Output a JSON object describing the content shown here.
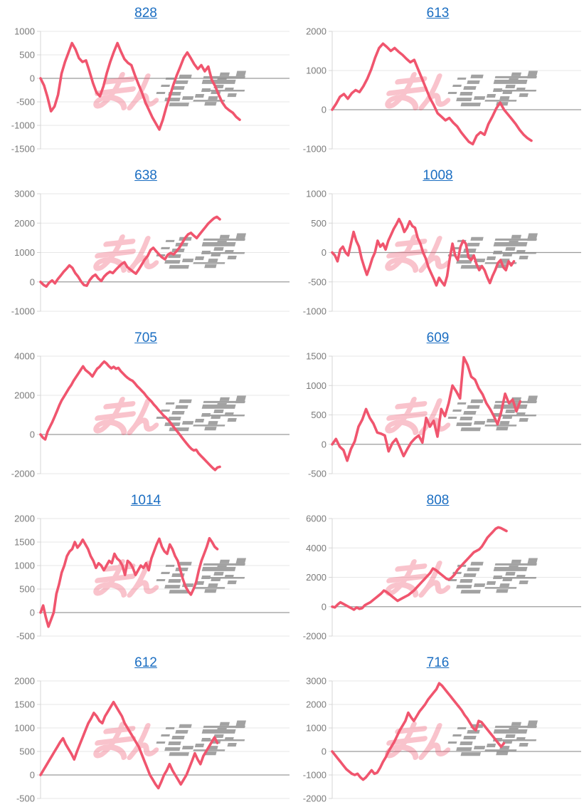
{
  "page": {
    "background": "#ffffff",
    "layout": "2x5 grid of daily slump line charts, each titled with a machine number link"
  },
  "theme": {
    "line_color": "#f0556e",
    "grid_color": "#e7e7e7",
    "zero_line_color": "#9b9b9b",
    "axis_line_color": "#d4d4d4",
    "tick_label_color": "#7a7a7a",
    "title_link_color": "#1b6ec2"
  },
  "watermark": {
    "pink_text": "みん",
    "gray_text": "レポ",
    "pink_color": "#f0556e",
    "gray_color": "#8c8c8c",
    "pink_opacity": 0.35,
    "gray_opacity": 0.8
  },
  "chart_data": [
    {
      "type": "line",
      "title": "828",
      "xlabel": "",
      "ylabel": "",
      "ylim": [
        -1500,
        1000
      ],
      "yticks": [
        1000,
        500,
        0,
        -500,
        -1000,
        -1500
      ],
      "grid": true,
      "x_fill": 0.8,
      "values": [
        0,
        -150,
        -400,
        -700,
        -600,
        -350,
        100,
        350,
        550,
        750,
        620,
        430,
        350,
        380,
        150,
        -100,
        -300,
        -380,
        -170,
        120,
        360,
        570,
        750,
        570,
        410,
        330,
        280,
        70,
        -120,
        -300,
        -510,
        -670,
        -830,
        -960,
        -1090,
        -880,
        -610,
        -380,
        -140,
        70,
        250,
        440,
        550,
        430,
        300,
        200,
        280,
        150,
        250,
        -30,
        -170,
        -350,
        -510,
        -620,
        -680,
        -730,
        -820,
        -880
      ]
    },
    {
      "type": "line",
      "title": "613",
      "xlabel": "",
      "ylabel": "",
      "ylim": [
        -1000,
        2000
      ],
      "yticks": [
        2000,
        1000,
        0,
        -1000
      ],
      "grid": true,
      "x_fill": 0.8,
      "values": [
        0,
        150,
        330,
        400,
        280,
        420,
        500,
        450,
        600,
        790,
        1030,
        1330,
        1575,
        1685,
        1600,
        1500,
        1575,
        1480,
        1400,
        1300,
        1210,
        1270,
        1030,
        790,
        545,
        300,
        120,
        -90,
        -180,
        -270,
        -210,
        -330,
        -425,
        -575,
        -700,
        -820,
        -880,
        -665,
        -575,
        -640,
        -365,
        -180,
        30,
        180,
        0,
        -120,
        -240,
        -365,
        -515,
        -635,
        -725,
        -790
      ]
    },
    {
      "type": "line",
      "title": "638",
      "xlabel": "",
      "ylabel": "",
      "ylim": [
        -1000,
        3000
      ],
      "yticks": [
        3000,
        2000,
        1000,
        0,
        -1000
      ],
      "grid": true,
      "x_fill": 0.72,
      "values": [
        0,
        -100,
        -160,
        -25,
        50,
        -50,
        100,
        220,
        345,
        450,
        560,
        480,
        300,
        180,
        15,
        -105,
        -130,
        60,
        180,
        245,
        115,
        30,
        180,
        280,
        345,
        300,
        410,
        510,
        605,
        670,
        510,
        425,
        345,
        280,
        425,
        590,
        755,
        875,
        1080,
        1160,
        1040,
        935,
        835,
        770,
        920,
        985,
        935,
        1040,
        1160,
        1325,
        1490,
        1615,
        1670,
        1575,
        1490,
        1615,
        1740,
        1860,
        1985,
        2080,
        2165,
        2215,
        2130
      ]
    },
    {
      "type": "line",
      "title": "1008",
      "xlabel": "",
      "ylabel": "",
      "ylim": [
        -1000,
        1000
      ],
      "yticks": [
        1000,
        500,
        0,
        -500,
        -1000
      ],
      "grid": true,
      "x_fill": 0.73,
      "values": [
        0,
        -50,
        -150,
        50,
        100,
        0,
        -50,
        150,
        350,
        200,
        100,
        -100,
        -250,
        -380,
        -250,
        -100,
        0,
        200,
        100,
        150,
        50,
        200,
        300,
        400,
        480,
        570,
        480,
        350,
        420,
        530,
        450,
        420,
        250,
        150,
        0,
        -100,
        -250,
        -350,
        -450,
        -560,
        -430,
        -500,
        -560,
        -400,
        -100,
        150,
        -50,
        -130,
        100,
        200,
        150,
        -80,
        -130,
        -50,
        -200,
        -300,
        -230,
        -300,
        -420,
        -520,
        -400,
        -300,
        -180,
        -130,
        -250,
        -300,
        -150,
        -220,
        -150
      ]
    },
    {
      "type": "line",
      "title": "705",
      "xlabel": "",
      "ylabel": "",
      "ylim": [
        -2000,
        4000
      ],
      "yticks": [
        4000,
        2000,
        0,
        -2000
      ],
      "grid": true,
      "x_fill": 0.72,
      "values": [
        0,
        -160,
        -250,
        150,
        400,
        640,
        915,
        1200,
        1500,
        1750,
        1950,
        2150,
        2350,
        2520,
        2740,
        2925,
        3110,
        3295,
        3480,
        3300,
        3200,
        3100,
        2960,
        3170,
        3355,
        3455,
        3600,
        3725,
        3625,
        3480,
        3380,
        3455,
        3355,
        3400,
        3235,
        3110,
        2985,
        2885,
        2800,
        2740,
        2615,
        2465,
        2345,
        2220,
        2095,
        1935,
        1810,
        1690,
        1530,
        1405,
        1255,
        1130,
        985,
        885,
        765,
        615,
        455,
        295,
        150,
        0,
        -160,
        -320,
        -470,
        -615,
        -740,
        -815,
        -780,
        -965,
        -1090,
        -1210,
        -1335,
        -1460,
        -1585,
        -1710,
        -1810,
        -1685,
        -1650
      ]
    },
    {
      "type": "line",
      "title": "609",
      "xlabel": "",
      "ylabel": "",
      "ylim": [
        -500,
        1500
      ],
      "yticks": [
        1500,
        1000,
        500,
        0,
        -500
      ],
      "grid": true,
      "x_fill": 0.755,
      "values": [
        0,
        90,
        -40,
        -100,
        -280,
        -80,
        50,
        300,
        420,
        600,
        450,
        350,
        200,
        180,
        150,
        -120,
        20,
        90,
        -50,
        -200,
        -80,
        30,
        100,
        150,
        30,
        450,
        300,
        400,
        130,
        600,
        480,
        700,
        1000,
        900,
        780,
        1480,
        1350,
        1150,
        1100,
        950,
        850,
        700,
        600,
        480,
        340,
        560,
        860,
        700,
        760,
        560,
        730
      ]
    },
    {
      "type": "line",
      "title": "1014",
      "xlabel": "",
      "ylabel": "",
      "ylim": [
        -500,
        2000
      ],
      "yticks": [
        2000,
        1500,
        1000,
        500,
        0,
        -500
      ],
      "grid": true,
      "x_fill": 0.71,
      "values": [
        0,
        150,
        -100,
        -300,
        -150,
        0,
        400,
        600,
        850,
        1000,
        1200,
        1300,
        1350,
        1500,
        1380,
        1450,
        1550,
        1450,
        1350,
        1200,
        1100,
        950,
        1050,
        1000,
        900,
        1000,
        1100,
        1050,
        1250,
        1150,
        1100,
        1000,
        800,
        1100,
        1050,
        950,
        800,
        900,
        1000,
        950,
        1050,
        900,
        1150,
        1300,
        1450,
        1570,
        1400,
        1300,
        1250,
        1450,
        1350,
        1200,
        1100,
        900,
        700,
        550,
        450,
        380,
        500,
        650,
        900,
        1100,
        1250,
        1400,
        1580,
        1500,
        1400,
        1350
      ]
    },
    {
      "type": "line",
      "title": "808",
      "xlabel": "",
      "ylabel": "",
      "ylim": [
        -2000,
        6000
      ],
      "yticks": [
        6000,
        4000,
        2000,
        0,
        -2000
      ],
      "grid": true,
      "x_fill": 0.7,
      "values": [
        0,
        -50,
        150,
        300,
        200,
        100,
        0,
        -100,
        -200,
        -50,
        -150,
        -100,
        100,
        200,
        300,
        450,
        600,
        750,
        900,
        1100,
        1000,
        850,
        700,
        550,
        400,
        500,
        600,
        700,
        800,
        950,
        1100,
        1300,
        1500,
        1700,
        1900,
        2100,
        2300,
        2600,
        2500,
        2350,
        2200,
        2050,
        1900,
        1850,
        2000,
        2200,
        2500,
        2700,
        2900,
        3100,
        3300,
        3500,
        3700,
        3800,
        3900,
        4100,
        4400,
        4700,
        4900,
        5100,
        5300,
        5400,
        5350,
        5250,
        5150
      ]
    },
    {
      "type": "line",
      "title": "612",
      "xlabel": "",
      "ylabel": "",
      "ylim": [
        -500,
        2000
      ],
      "yticks": [
        2000,
        1500,
        1000,
        500,
        0,
        -500
      ],
      "grid": true,
      "x_fill": 0.71,
      "values": [
        0,
        100,
        200,
        300,
        400,
        500,
        600,
        700,
        780,
        650,
        550,
        450,
        330,
        500,
        650,
        800,
        950,
        1100,
        1200,
        1320,
        1250,
        1150,
        1100,
        1250,
        1350,
        1450,
        1550,
        1450,
        1350,
        1250,
        1100,
        1000,
        900,
        800,
        700,
        600,
        450,
        300,
        150,
        0,
        -100,
        -200,
        -280,
        -150,
        0,
        100,
        230,
        100,
        0,
        -100,
        -200,
        -100,
        0,
        150,
        300,
        460,
        330,
        230,
        400,
        500,
        600,
        700,
        800,
        680
      ]
    },
    {
      "type": "line",
      "title": "716",
      "xlabel": "",
      "ylabel": "",
      "ylim": [
        -2000,
        3000
      ],
      "yticks": [
        3000,
        2000,
        1000,
        0,
        -1000,
        -2000
      ],
      "grid": true,
      "x_fill": 0.69,
      "values": [
        0,
        -150,
        -300,
        -450,
        -600,
        -750,
        -850,
        -950,
        -1000,
        -950,
        -1100,
        -1200,
        -1100,
        -950,
        -800,
        -950,
        -900,
        -700,
        -450,
        -250,
        0,
        200,
        400,
        650,
        900,
        1100,
        1300,
        1650,
        1450,
        1300,
        1500,
        1700,
        1850,
        2000,
        2200,
        2350,
        2500,
        2650,
        2900,
        2800,
        2650,
        2500,
        2350,
        2200,
        2050,
        1900,
        1750,
        1550,
        1400,
        1200,
        1000,
        900,
        1300,
        1250,
        1100,
        950,
        800,
        650,
        500,
        350,
        200,
        350
      ]
    }
  ]
}
